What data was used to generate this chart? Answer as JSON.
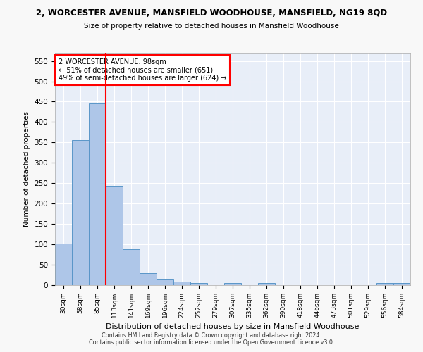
{
  "title_line1": "2, WORCESTER AVENUE, MANSFIELD WOODHOUSE, MANSFIELD, NG19 8QD",
  "title_line2": "Size of property relative to detached houses in Mansfield Woodhouse",
  "xlabel": "Distribution of detached houses by size in Mansfield Woodhouse",
  "ylabel": "Number of detached properties",
  "footer_line1": "Contains HM Land Registry data © Crown copyright and database right 2024.",
  "footer_line2": "Contains public sector information licensed under the Open Government Licence v3.0.",
  "annotation_line1": "2 WORCESTER AVENUE: 98sqm",
  "annotation_line2": "← 51% of detached houses are smaller (651)",
  "annotation_line3": "49% of semi-detached houses are larger (624) →",
  "bin_labels": [
    "30sqm",
    "58sqm",
    "85sqm",
    "113sqm",
    "141sqm",
    "169sqm",
    "196sqm",
    "224sqm",
    "252sqm",
    "279sqm",
    "307sqm",
    "335sqm",
    "362sqm",
    "390sqm",
    "418sqm",
    "446sqm",
    "473sqm",
    "501sqm",
    "529sqm",
    "556sqm",
    "584sqm"
  ],
  "bar_values": [
    102,
    355,
    446,
    243,
    88,
    30,
    13,
    9,
    5,
    0,
    5,
    0,
    5,
    0,
    0,
    0,
    0,
    0,
    0,
    5,
    5
  ],
  "bar_color": "#aec6e8",
  "bar_edge_color": "#5a96c8",
  "ylim": [
    0,
    570
  ],
  "yticks": [
    0,
    50,
    100,
    150,
    200,
    250,
    300,
    350,
    400,
    450,
    500,
    550
  ],
  "plot_bg_color": "#e8eef8",
  "grid_color": "#ffffff"
}
